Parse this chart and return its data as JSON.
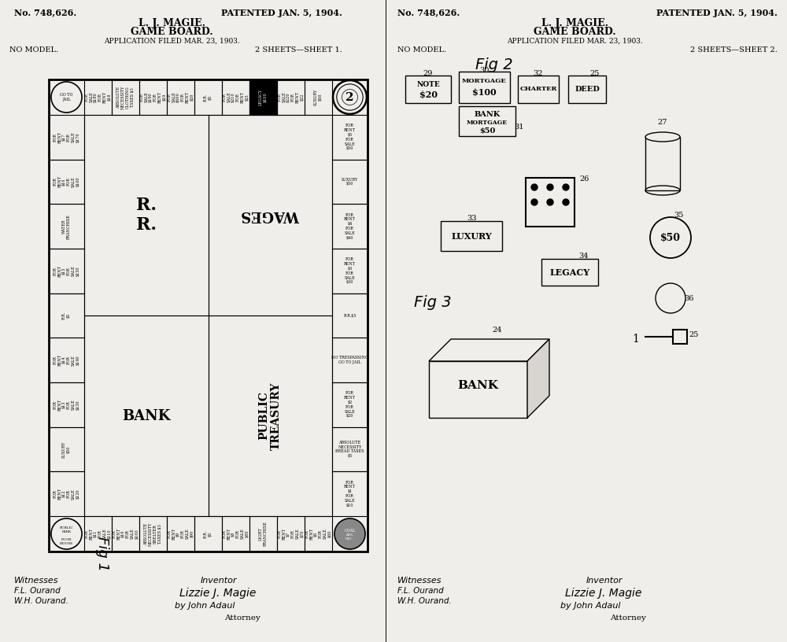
{
  "bg_color": "#f0eeea",
  "patent_no": "No. 748,626.",
  "patented": "PATENTED JAN. 5, 1904.",
  "title_line1": "L. J. MAGIE.",
  "title_line2": "GAME BOARD.",
  "application": "APPLICATION FILED MAR. 23, 1903.",
  "no_model": "NO MODEL.",
  "sheets1": "2 SHEETS—SHEET 1.",
  "sheets2": "2 SHEETS—SHEET 2.",
  "fig1": "Fig 1",
  "fig2": "Fig 2",
  "fig3": "Fig 3"
}
